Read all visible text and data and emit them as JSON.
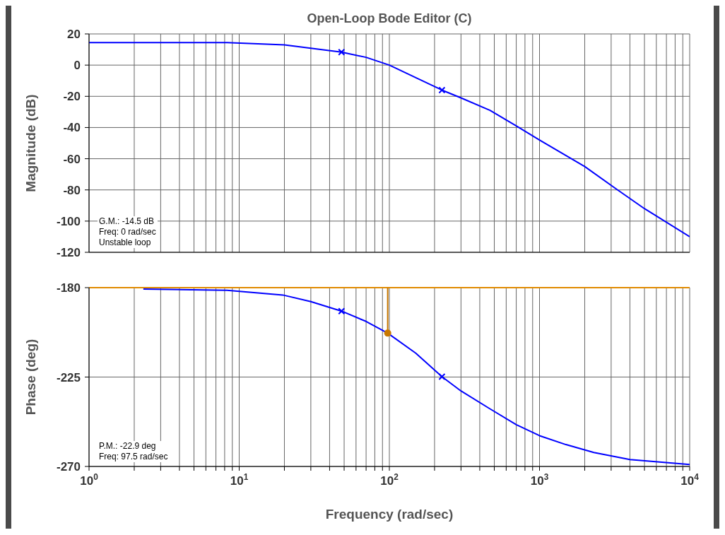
{
  "chart_data": [
    {
      "type": "line",
      "title": "Open-Loop Bode Editor (C)",
      "ylabel": "Magnitude (dB)",
      "log": "x",
      "xlim": [
        1,
        10000
      ],
      "xticks": [
        {
          "value": 1,
          "label": null
        },
        {
          "value": 2,
          "label": null
        },
        {
          "value": 3,
          "label": null
        },
        {
          "value": 4,
          "label": null
        },
        {
          "value": 5,
          "label": null
        },
        {
          "value": 6,
          "label": null
        },
        {
          "value": 7,
          "label": null
        },
        {
          "value": 8,
          "label": null
        },
        {
          "value": 9,
          "label": null
        },
        {
          "value": 10,
          "label": null
        },
        {
          "value": 20,
          "label": null
        },
        {
          "value": 30,
          "label": null
        },
        {
          "value": 40,
          "label": null
        },
        {
          "value": 50,
          "label": null
        },
        {
          "value": 60,
          "label": null
        },
        {
          "value": 70,
          "label": null
        },
        {
          "value": 80,
          "label": null
        },
        {
          "value": 90,
          "label": null
        },
        {
          "value": 100,
          "label": null
        },
        {
          "value": 200,
          "label": null
        },
        {
          "value": 300,
          "label": null
        },
        {
          "value": 400,
          "label": null
        },
        {
          "value": 500,
          "label": null
        },
        {
          "value": 600,
          "label": null
        },
        {
          "value": 700,
          "label": null
        },
        {
          "value": 800,
          "label": null
        },
        {
          "value": 900,
          "label": null
        },
        {
          "value": 1000,
          "label": null
        },
        {
          "value": 2000,
          "label": null
        },
        {
          "value": 3000,
          "label": null
        },
        {
          "value": 4000,
          "label": null
        },
        {
          "value": 5000,
          "label": null
        },
        {
          "value": 6000,
          "label": null
        },
        {
          "value": 7000,
          "label": null
        },
        {
          "value": 8000,
          "label": null
        },
        {
          "value": 9000,
          "label": null
        },
        {
          "value": 10000,
          "label": null
        }
      ],
      "ylim": [
        -120,
        20
      ],
      "yticks": [
        -120,
        -100,
        -80,
        -60,
        -40,
        -20,
        0,
        20
      ],
      "grid": true,
      "tick_labels": "y",
      "annotations": [
        "G.M.: -14.5 dB",
        "Freq: 0 rad/sec",
        "Unstable loop"
      ],
      "series": [
        {
          "color": "#0000ff",
          "marker": "none",
          "x": [
            1,
            2.3,
            8.3,
            20,
            48,
            70,
            100,
            150,
            224,
            300,
            468,
            700,
            1000,
            2000,
            3200,
            5000,
            10000
          ],
          "values": [
            14.5,
            14.5,
            14.5,
            13,
            8.3,
            5,
            0,
            -8,
            -16,
            -21,
            -29,
            -39,
            -48,
            -65,
            -79,
            -92,
            -110
          ]
        },
        {
          "type": "scatter",
          "color": "#0000ff",
          "marker": "cross",
          "x": [
            48,
            224
          ],
          "values": [
            8.3,
            -16
          ]
        }
      ]
    },
    {
      "type": "line",
      "xlabel": "Frequency (rad/sec)",
      "ylabel": "Phase (deg)",
      "log": "x",
      "xlim": [
        1,
        10000
      ],
      "xticks": [
        {
          "value": 1,
          "label": "10$^{0}$"
        },
        {
          "value": 2,
          "label": null
        },
        {
          "value": 3,
          "label": null
        },
        {
          "value": 4,
          "label": null
        },
        {
          "value": 5,
          "label": null
        },
        {
          "value": 6,
          "label": null
        },
        {
          "value": 7,
          "label": null
        },
        {
          "value": 8,
          "label": null
        },
        {
          "value": 9,
          "label": null
        },
        {
          "value": 10,
          "label": "10$^{1}$"
        },
        {
          "value": 20,
          "label": null
        },
        {
          "value": 30,
          "label": null
        },
        {
          "value": 40,
          "label": null
        },
        {
          "value": 50,
          "label": null
        },
        {
          "value": 60,
          "label": null
        },
        {
          "value": 70,
          "label": null
        },
        {
          "value": 80,
          "label": null
        },
        {
          "value": 90,
          "label": null
        },
        {
          "value": 100,
          "label": "10$^{2}$"
        },
        {
          "value": 200,
          "label": null
        },
        {
          "value": 300,
          "label": null
        },
        {
          "value": 400,
          "label": null
        },
        {
          "value": 500,
          "label": null
        },
        {
          "value": 600,
          "label": null
        },
        {
          "value": 700,
          "label": null
        },
        {
          "value": 800,
          "label": null
        },
        {
          "value": 900,
          "label": null
        },
        {
          "value": 1000,
          "label": "10$^{3}$"
        },
        {
          "value": 2000,
          "label": null
        },
        {
          "value": 3000,
          "label": null
        },
        {
          "value": 4000,
          "label": null
        },
        {
          "value": 5000,
          "label": null
        },
        {
          "value": 6000,
          "label": null
        },
        {
          "value": 7000,
          "label": null
        },
        {
          "value": 8000,
          "label": null
        },
        {
          "value": 9000,
          "label": null
        },
        {
          "value": 10000,
          "label": "10$^{4}$"
        }
      ],
      "ylim": [
        -270,
        -180
      ],
      "yticks": [
        -270,
        -225,
        -180
      ],
      "grid": true,
      "annotations": [
        "P.M.: -22.9 deg",
        "Freq: 97.5 rad/sec"
      ],
      "ref_lines": [
        {
          "axis": "y",
          "value": -180,
          "color": "#e08a00"
        }
      ],
      "series": [
        {
          "color": "#0000ff",
          "marker": "none",
          "x": [
            2.3,
            8.3,
            19.5,
            30,
            48,
            70,
            97.5,
            150,
            224,
            300,
            468,
            700,
            1000,
            1500,
            2300,
            4000,
            10000
          ],
          "values": [
            -180.7,
            -181.3,
            -183.7,
            -187,
            -191.8,
            -197,
            -202.9,
            -213,
            -224.8,
            -232,
            -241,
            -249,
            -254.5,
            -259,
            -263,
            -266.5,
            -269
          ]
        },
        {
          "type": "scatter",
          "color": "#0000ff",
          "marker": "cross",
          "x": [
            48,
            224
          ],
          "values": [
            -191.8,
            -224.8
          ]
        },
        {
          "color": "#c87800",
          "marker": "none",
          "x": [
            97.5,
            97.5
          ],
          "values": [
            -180,
            -202.9
          ]
        },
        {
          "type": "scatter",
          "color": "#c87800",
          "marker": "circle",
          "x": [
            97.5
          ],
          "values": [
            -202.9
          ]
        }
      ]
    }
  ]
}
